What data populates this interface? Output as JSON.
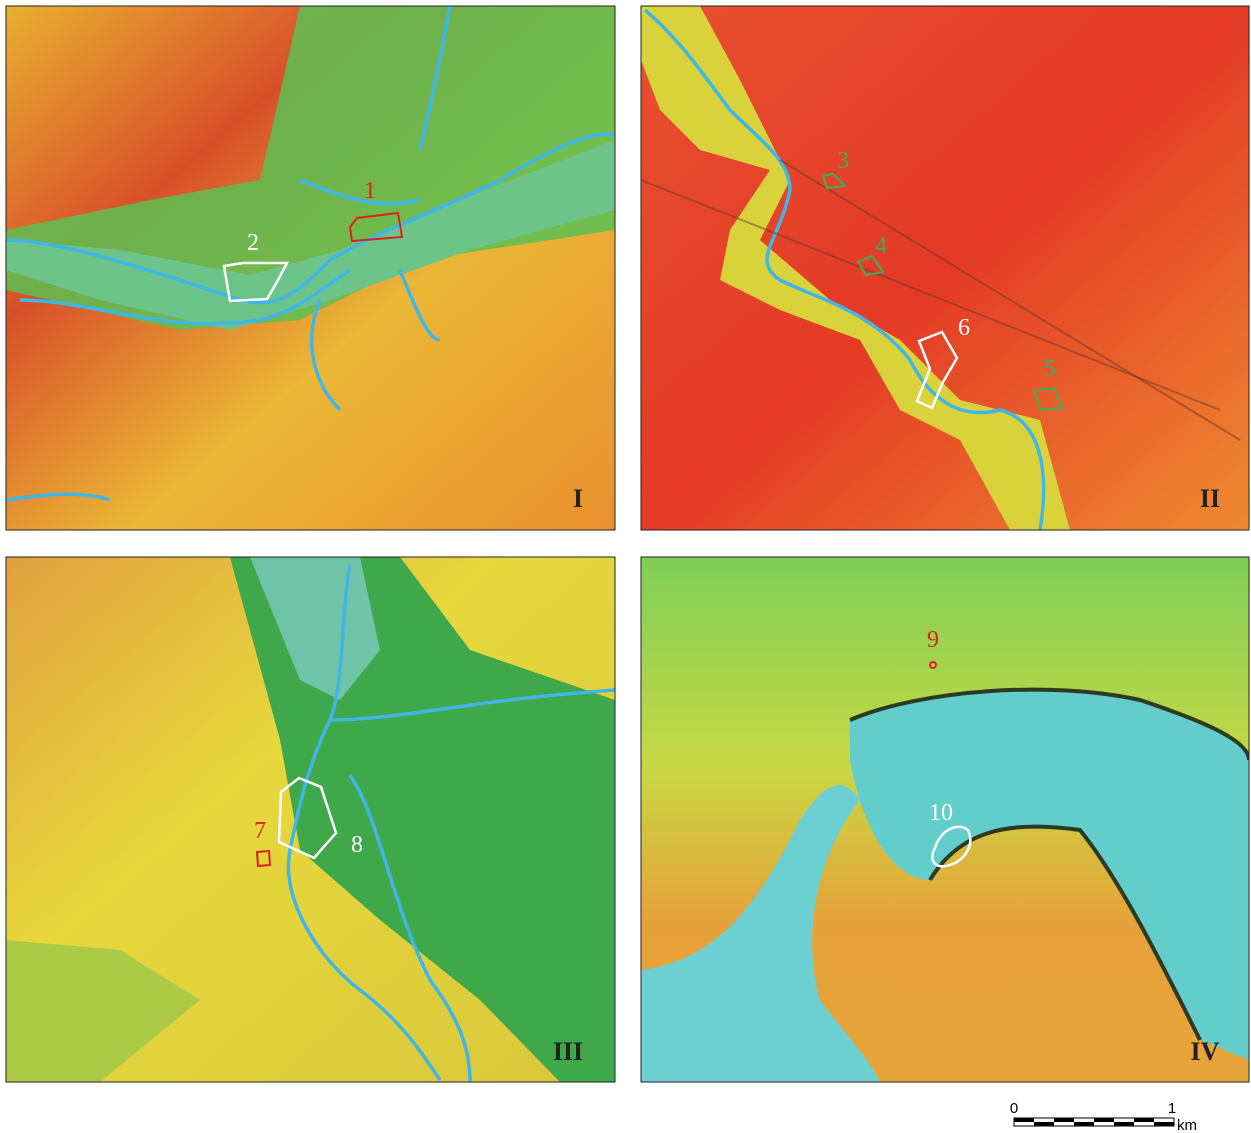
{
  "panels": [
    {
      "label": "I",
      "sites": [
        {
          "label": "1"
        },
        {
          "label": "2"
        }
      ]
    },
    {
      "label": "II",
      "sites": [
        {
          "label": "3"
        },
        {
          "label": "4"
        },
        {
          "label": "5"
        },
        {
          "label": "6"
        }
      ]
    },
    {
      "label": "III",
      "sites": [
        {
          "label": "7"
        },
        {
          "label": "8"
        }
      ]
    },
    {
      "label": "IV",
      "sites": [
        {
          "label": "9"
        },
        {
          "label": "10"
        }
      ]
    }
  ],
  "scale_bar": {
    "start": "0",
    "end": "1",
    "unit": "km"
  }
}
